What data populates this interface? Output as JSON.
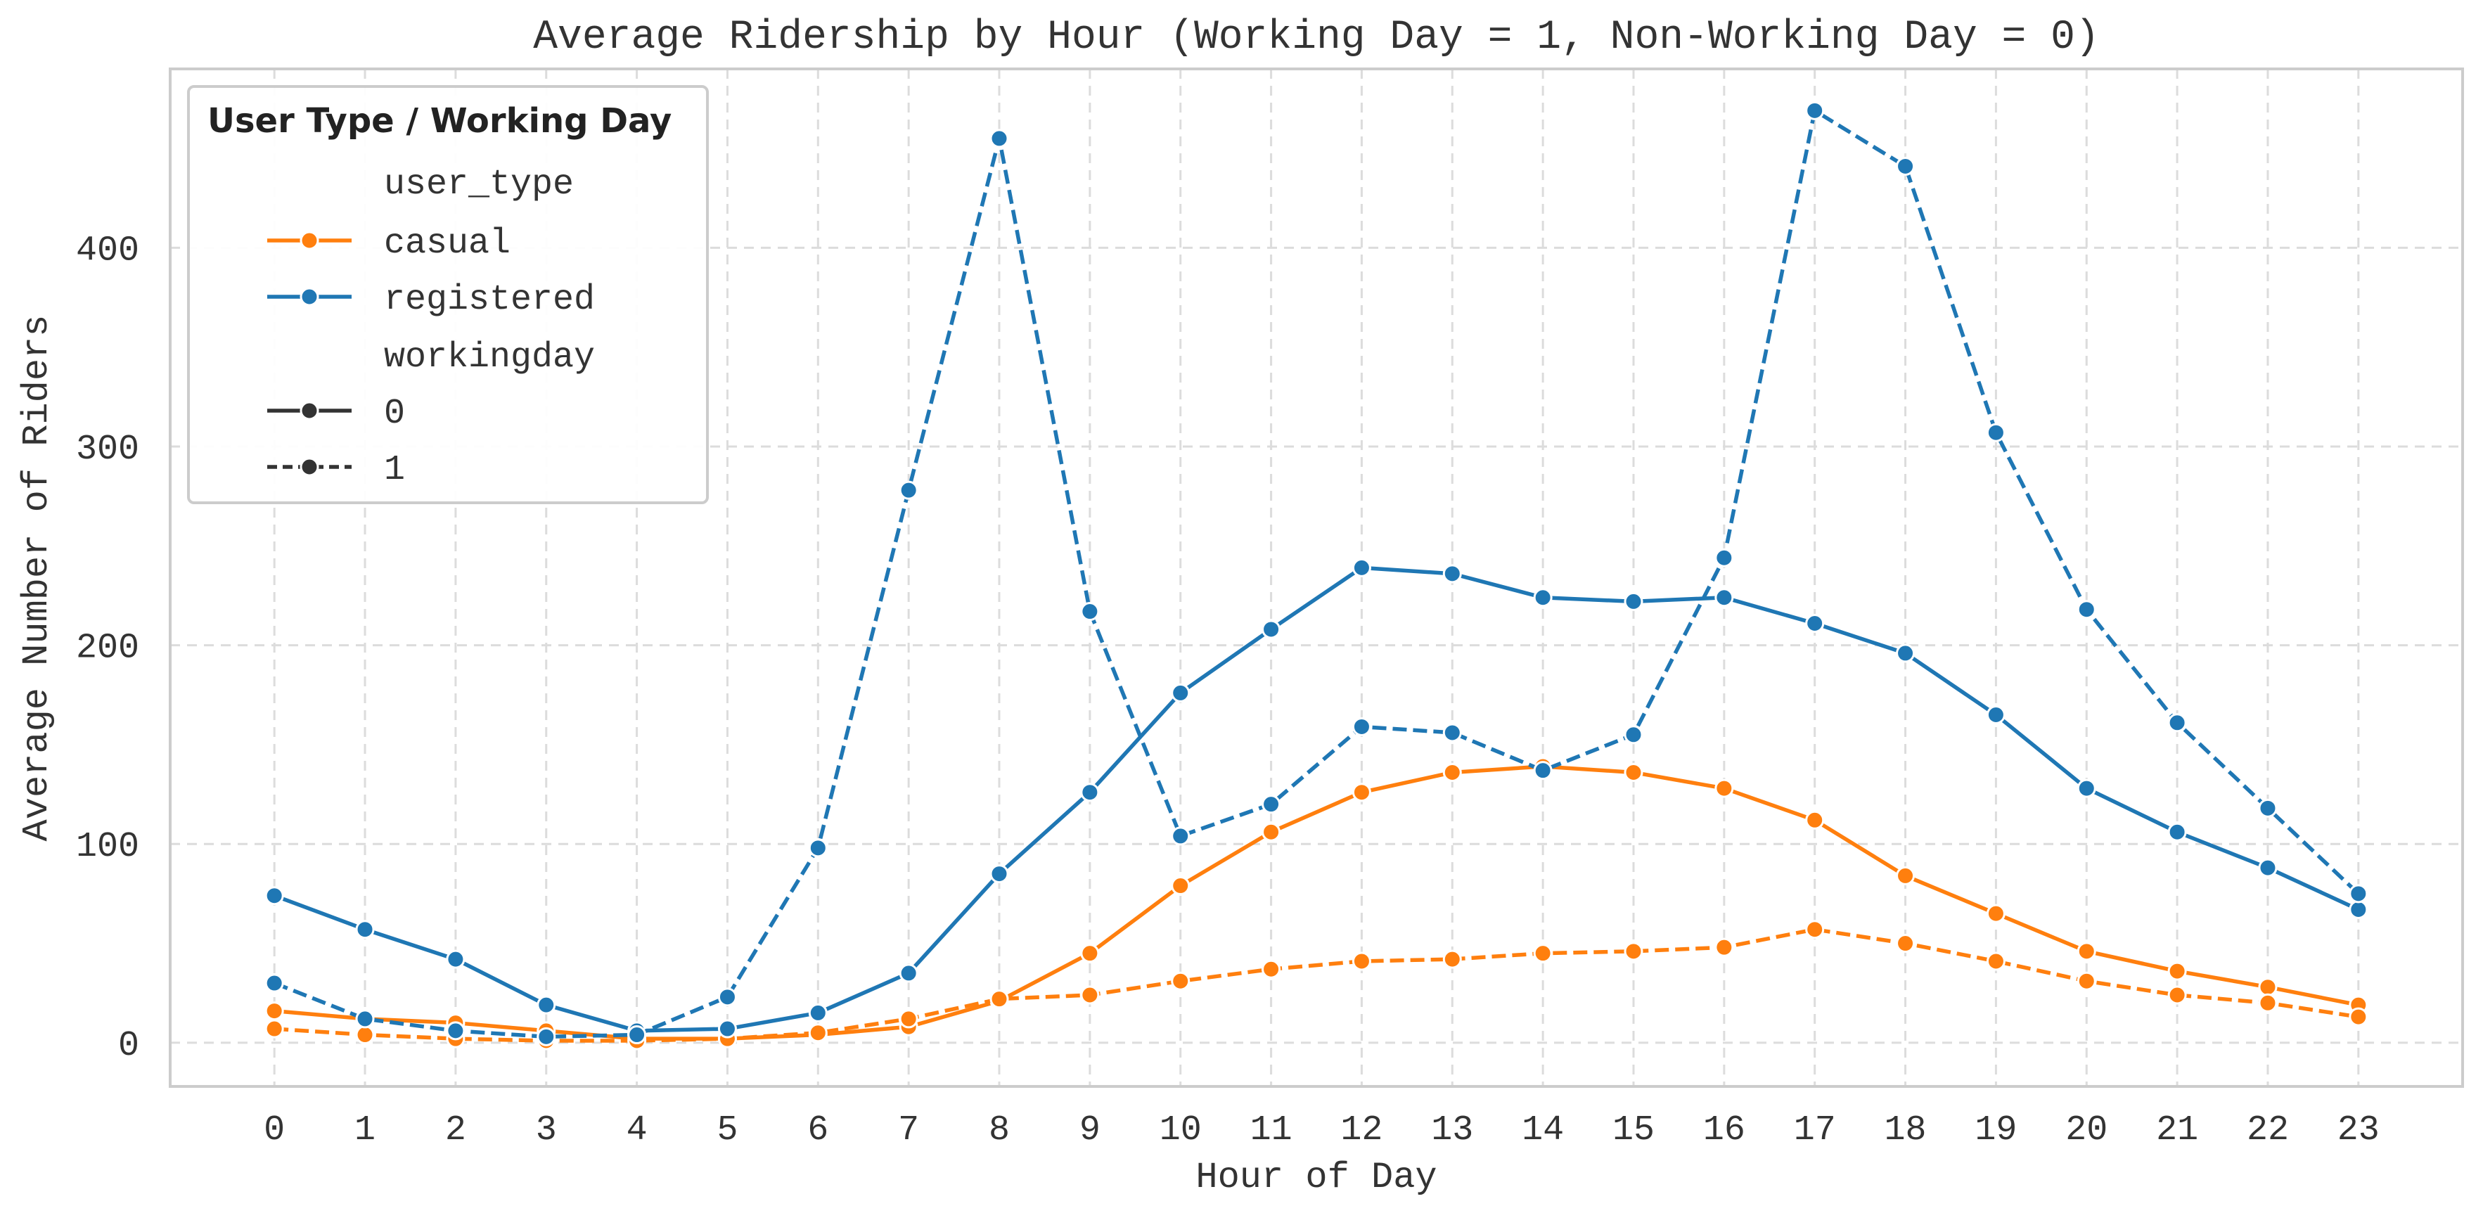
{
  "chart_data": {
    "type": "line",
    "title": "Average Ridership by Hour (Working Day = 1, Non-Working Day = 0)",
    "xlabel": "Hour of Day",
    "ylabel": "Average Number of Riders",
    "x": [
      0,
      1,
      2,
      3,
      4,
      5,
      6,
      7,
      8,
      9,
      10,
      11,
      12,
      13,
      14,
      15,
      16,
      17,
      18,
      19,
      20,
      21,
      22,
      23
    ],
    "xlim": [
      -1.15,
      24.15
    ],
    "ylim": [
      -22,
      490
    ],
    "yticks": [
      0,
      100,
      200,
      300,
      400
    ],
    "grid": true,
    "legend": {
      "placement": "top-left",
      "title": "User Type / Working Day",
      "hue_header": "user_type",
      "style_header": "workingday",
      "style_entries": [
        "0",
        "1"
      ]
    },
    "colors": {
      "casual": "#ff7f0e",
      "registered": "#1f77b4",
      "style_marker": "#333333"
    },
    "series": [
      {
        "name": "casual",
        "user_type": "casual",
        "workingday": "0",
        "dash": "solid",
        "values": [
          16,
          12,
          10,
          6,
          2,
          2,
          4,
          8,
          21,
          45,
          79,
          106,
          126,
          136,
          139,
          136,
          128,
          112,
          84,
          65,
          46,
          36,
          28,
          19
        ]
      },
      {
        "name": "casual",
        "user_type": "casual",
        "workingday": "1",
        "dash": "dashed",
        "values": [
          7,
          4,
          2,
          1,
          1,
          2,
          5,
          12,
          22,
          24,
          31,
          37,
          41,
          42,
          45,
          46,
          48,
          57,
          50,
          41,
          31,
          24,
          20,
          13
        ]
      },
      {
        "name": "registered",
        "user_type": "registered",
        "workingday": "0",
        "dash": "solid",
        "values": [
          74,
          57,
          42,
          19,
          6,
          7,
          15,
          35,
          85,
          126,
          176,
          208,
          239,
          236,
          224,
          222,
          224,
          211,
          196,
          165,
          128,
          106,
          88,
          67
        ]
      },
      {
        "name": "registered",
        "user_type": "registered",
        "workingday": "1",
        "dash": "dashed",
        "values": [
          30,
          12,
          6,
          3,
          4,
          23,
          98,
          278,
          455,
          217,
          104,
          120,
          159,
          156,
          137,
          155,
          244,
          469,
          441,
          307,
          218,
          161,
          118,
          75
        ]
      }
    ]
  }
}
